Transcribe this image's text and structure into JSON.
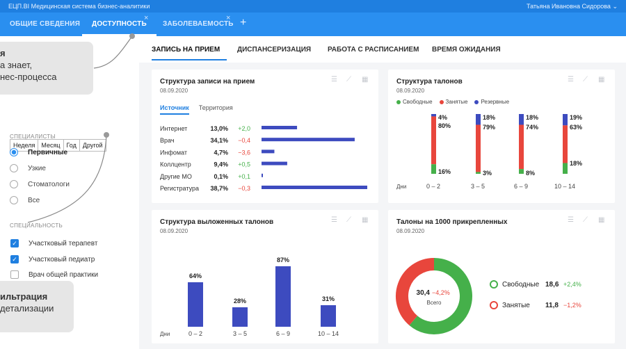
{
  "header": {
    "app_title": "ЕЦП.BI Медицинская система бизнес-аналитики",
    "user_name": "Татьяна Ивановна Сидорова"
  },
  "tabs": [
    {
      "label": "ОБЩИЕ СВЕДЕНИЯ"
    },
    {
      "label": "ДОСТУПНОСТЬ",
      "active": true
    },
    {
      "label": "ЗАБОЛЕВАЕМОСТЬ"
    }
  ],
  "icons": {
    "close": "close-icon",
    "add": "plus-icon",
    "chevron": "chevron-down-icon"
  },
  "left": {
    "callout1": {
      "title": "я",
      "line1": "а знает,",
      "line2": "нес-процесса"
    },
    "callout2": {
      "title": "ильтрация",
      "line1": "детализации"
    },
    "period": [
      "Неделя",
      "Месяц",
      "Год",
      "Другой"
    ],
    "specialists_label": "СПЕЦИАЛИСТЫ",
    "specialists": [
      {
        "label": "Первичные",
        "selected": true
      },
      {
        "label": "Узкие",
        "selected": false
      },
      {
        "label": "Стоматологи",
        "selected": false
      },
      {
        "label": "Все",
        "selected": false
      }
    ],
    "specialty_label": "СПЕЦИАЛЬНОСТЬ",
    "specialties": [
      {
        "label": "Участковый терапевт",
        "checked": true
      },
      {
        "label": "Участковый педиатр",
        "checked": true
      },
      {
        "label": "Врач общей практики",
        "checked": false
      }
    ]
  },
  "subtabs": [
    "ЗАПИСЬ НА ПРИЕМ",
    "ДИСПАНСЕРИЗАЦИЯ",
    "РАБОТА С РАСПИСАНИЕМ",
    "ВРЕМЯ ОЖИДАНИЯ"
  ],
  "colors": {
    "blue": "#3d4bbf",
    "red": "#e8463c",
    "green": "#45b04a",
    "accent": "#2a8ff0"
  },
  "card1": {
    "title": "Структура записи на прием",
    "date": "08.09.2020",
    "tab_active": "Источник",
    "tab_other": "Территория",
    "chart_data": {
      "type": "bar",
      "categories": [
        "Интернет",
        "Врач",
        "Инфомат",
        "Коллцентр",
        "Другие МО",
        "Регистратура"
      ],
      "values": [
        13.0,
        34.1,
        4.7,
        9.4,
        0.1,
        38.7
      ],
      "value_labels": [
        "13,0%",
        "34,1%",
        "4,7%",
        "9,4%",
        "0,1%",
        "38,7%"
      ],
      "changes": [
        "+2,0",
        "−0,4",
        "−3,6",
        "+0,5",
        "+0,1",
        "−0,3"
      ],
      "change_positive": [
        true,
        false,
        false,
        true,
        true,
        false
      ],
      "orientation": "horizontal"
    }
  },
  "card2": {
    "title": "Структура талонов",
    "date": "08.09.2020",
    "legend": [
      "Свободные",
      "Занятые",
      "Резервные"
    ],
    "axis_label": "Дни",
    "chart_data": {
      "type": "bar",
      "stacked": true,
      "categories": [
        "0 – 2",
        "3 – 5",
        "6 – 9",
        "10 – 14"
      ],
      "series": [
        {
          "name": "Резервные",
          "values": [
            4,
            18,
            18,
            19
          ],
          "labels": [
            "4%",
            "18%",
            "18%",
            "19%"
          ]
        },
        {
          "name": "Занятые",
          "values": [
            80,
            79,
            74,
            63
          ],
          "labels": [
            "80%",
            "79%",
            "74%",
            "63%"
          ]
        },
        {
          "name": "Свободные",
          "values": [
            16,
            3,
            8,
            18
          ],
          "labels": [
            "16%",
            "3%",
            "8%",
            "18%"
          ]
        }
      ]
    }
  },
  "card3": {
    "title": "Структура выложенных талонов",
    "date": "08.09.2020",
    "axis_label": "Дни",
    "chart_data": {
      "type": "bar",
      "categories": [
        "0 – 2",
        "3 – 5",
        "6 – 9",
        "10 – 14"
      ],
      "values": [
        64,
        28,
        87,
        31
      ],
      "value_labels": [
        "64%",
        "28%",
        "87%",
        "31%"
      ],
      "ylim": [
        0,
        100
      ]
    }
  },
  "card4": {
    "title": "Талоны на 1000 прикрепленных",
    "date": "08.09.2020",
    "center_value": "30,4",
    "center_change": "−4,2%",
    "center_label": "Всего",
    "chart_data": {
      "type": "pie",
      "donut": true,
      "slices": [
        {
          "name": "Свободные",
          "value": 18.6,
          "change": "+2,4%",
          "color": "#45b04a"
        },
        {
          "name": "Занятые",
          "value": 11.8,
          "change": "−1,2%",
          "color": "#e8463c"
        }
      ],
      "value_labels": [
        "18,6",
        "11,8"
      ]
    }
  }
}
